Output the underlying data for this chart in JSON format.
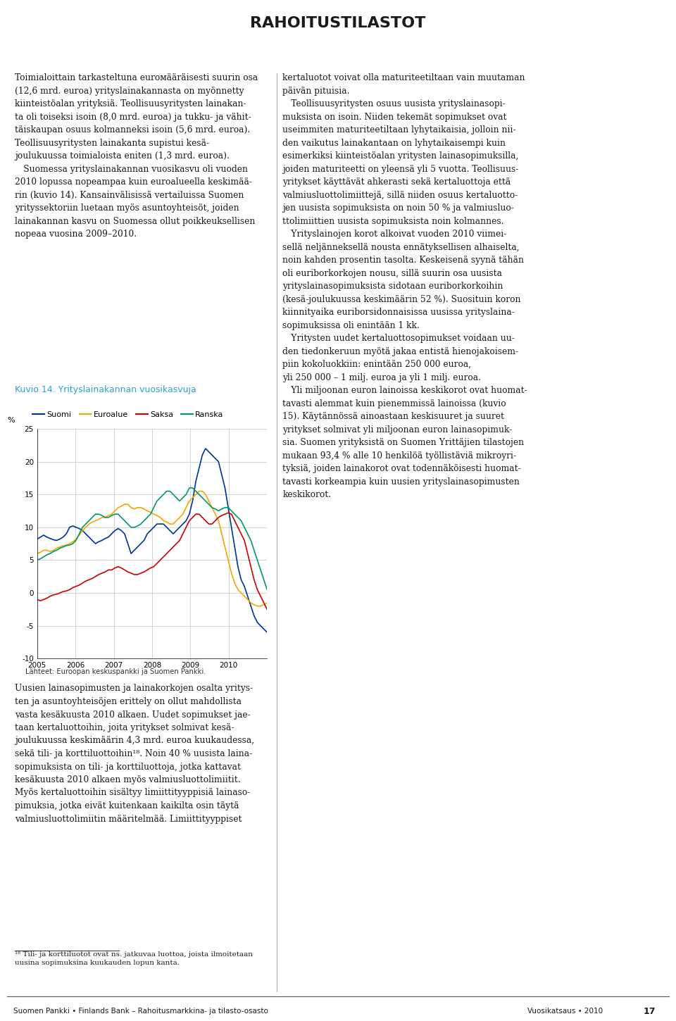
{
  "title": "RAHOITUSTILASTOT",
  "header_color": "#2e9fd4",
  "chart_title": "Kuvio 14. Yrityslainakannan vuosikasvuja",
  "chart_title_color": "#2e9fd4",
  "ylabel": "%",
  "ylim": [
    -10,
    25
  ],
  "yticks": [
    -10,
    -5,
    0,
    5,
    10,
    15,
    20,
    25
  ],
  "footer_left": "Suomen Pankki • Finlands Bank – Rahoitusmarkkina- ja tilasto-osasto",
  "footer_right": "Vuosikatsaus • 2010",
  "footer_page": "17",
  "source_text": "Lähteet: Euroopan keskuspankki ja Suomen Pankki.",
  "legend": [
    "Suomi",
    "Euroalue",
    "Saksa",
    "Ranska"
  ],
  "line_colors": [
    "#003399",
    "#f0a800",
    "#cc0000",
    "#009966"
  ],
  "bg_color": "#ffffff",
  "plot_bg_color": "#ffffff",
  "grid_color": "#cccccc",
  "left_text_top": "Toimialoittain tarkasteltuna euroмääräisesti suurin osa\n(12,6 mrd. euroa) yrityslainakannasta on myönnetty\nkiinteistöalan yrityksiä. Teollisuusyritysten lainakan-\nta oli toiseksi isoin (8,0 mrd. euroa) ja tukku- ja vähit-\ntäiskaupan osuus kolmanneksi isoin (5,6 mrd. euroa).\nTeollisuusyritysten lainakanta supistui kesä-\njoulukuussa toimialoista eniten (1,3 mrd. euroa).\n Suomessa yrityslainakannan vuosikasvu oli vuoden\n2010 lopussa nopeampaa kuin euroalueella keskimää-\nrin (kuvio 14). Kansainvälisissä vertailuissa Suomen\nyrityssektoriin luetaan myös asuntoyhteisöt, joiden\nlainakannan kasvu on Suomessa ollut poikkeuksellisen\nnopeaa vuosina 2009–2010.",
  "left_text_bottom": "Uusien lainasopimusten ja lainakorkojen osalta yritys-\nten ja asuntoyhteisöjen erittely on ollut mahdollista\nvasta kesäkuusta 2010 alkaen. Uudet sopimukset jae-\ntaan kertaluottoihin, joita yritykset solmivat kesä-\njoulukuussa keskimäärin 4,3 mrd. euroa kuukaudessa,\nsekä tili- ja korttiluottoihin¹⁸. Noin 40 % uusista laina-\nsopimuksista on tili- ja korttiluottoja, jotka kattavat\nkesäkuusta 2010 alkaen myös valmiusluottolimiitit.\nMyös kertaluottoihin sisältyy limiittityyppisiä lainaso-\npimuksia, jotka eivät kuitenkaan kaikilta osin täytä\nvalmiusluottolimiitin määritelmää. Limiittityyppiset",
  "footnote_text": "¹⁸ Tili- ja korttiluotot ovat ns. jatkuvaa luottoa, joista ilmoitetaan\nuusina sopimuksina kuukauden lopun kanta.",
  "right_text": "kertaluotot voivat olla maturiteetiltaan vain muutaman\npäivän pituisia.\n Teollisuusyritysten osuus uusista yrityslainasopi-\nmuksista on isoin. Niiden tekemät sopimukset ovat\nuseimmiten maturiteetiltaan lyhytaikaisia, jolloin nii-\nden vaikutus lainakantaan on lyhytaikaisempi kuin\nesimerkiksi kiinteistöalan yritysten lainasopimuksilla,\njoiden maturiteetti on yleensä yli 5 vuotta. Teollisuus-\nyritykset käyttävät ahkerasti sekä kertaluottoja että\nvalmiusluottolimiittejä, sillä niiden osuus kertaluotto-\njen uusista sopimuksista on noin 50 % ja valmiusluo-\nttolimiittien uusista sopimuksista noin kolmannes.\n Yrityslainojen korot alkoivat vuoden 2010 viimei-\nsellä neljänneksellä nousta ennätyksellisen alhaiselta,\nnoin kahden prosentin tasolta. Keskeisenä syynä tähän\noli euriborkorkojen nousu, sillä suurin osa uusista\nyrityslainasopimuksista sidotaan euriborkorkoihin\n(kesä-joulukuussa keskimäärin 52 %). Suosituin koron\nkiinnityaika euriborsidonnaisissa uusissa yrityslaina-\nsopimuksissa oli enintään 1 kk.\n Yritysten uudet kertaluottosopimukset voidaan uu-\nden tiedonkeruun myötä jakaa entistä hienojakoisem-\npiin kokoluokkiin: enintään 250 000 euroa,\nyli 250 000 – 1 milj. euroa ja yli 1 milj. euroa.\n Yli miljoonan euron lainoissa keskikorot ovat huomat-\ntavasti alemmat kuin pienemmissä lainoissa (kuvio\n15). Käytännössä ainoastaan keskisuuret ja suuret\nyritykset solmivat yli miljoonan euron lainasopimuk-\nsia. Suomen yrityksistä on Suomen Yrittäjien tilastojen\nmukaan 93,4 % alle 10 henkilöä työllistäviä mikroyri-\ntyksiä, joiden lainakorot ovat todennäköisesti huomat-\ntavasti korkeampia kuin uusien yrityslainasopimusten\nkeskikorot."
}
